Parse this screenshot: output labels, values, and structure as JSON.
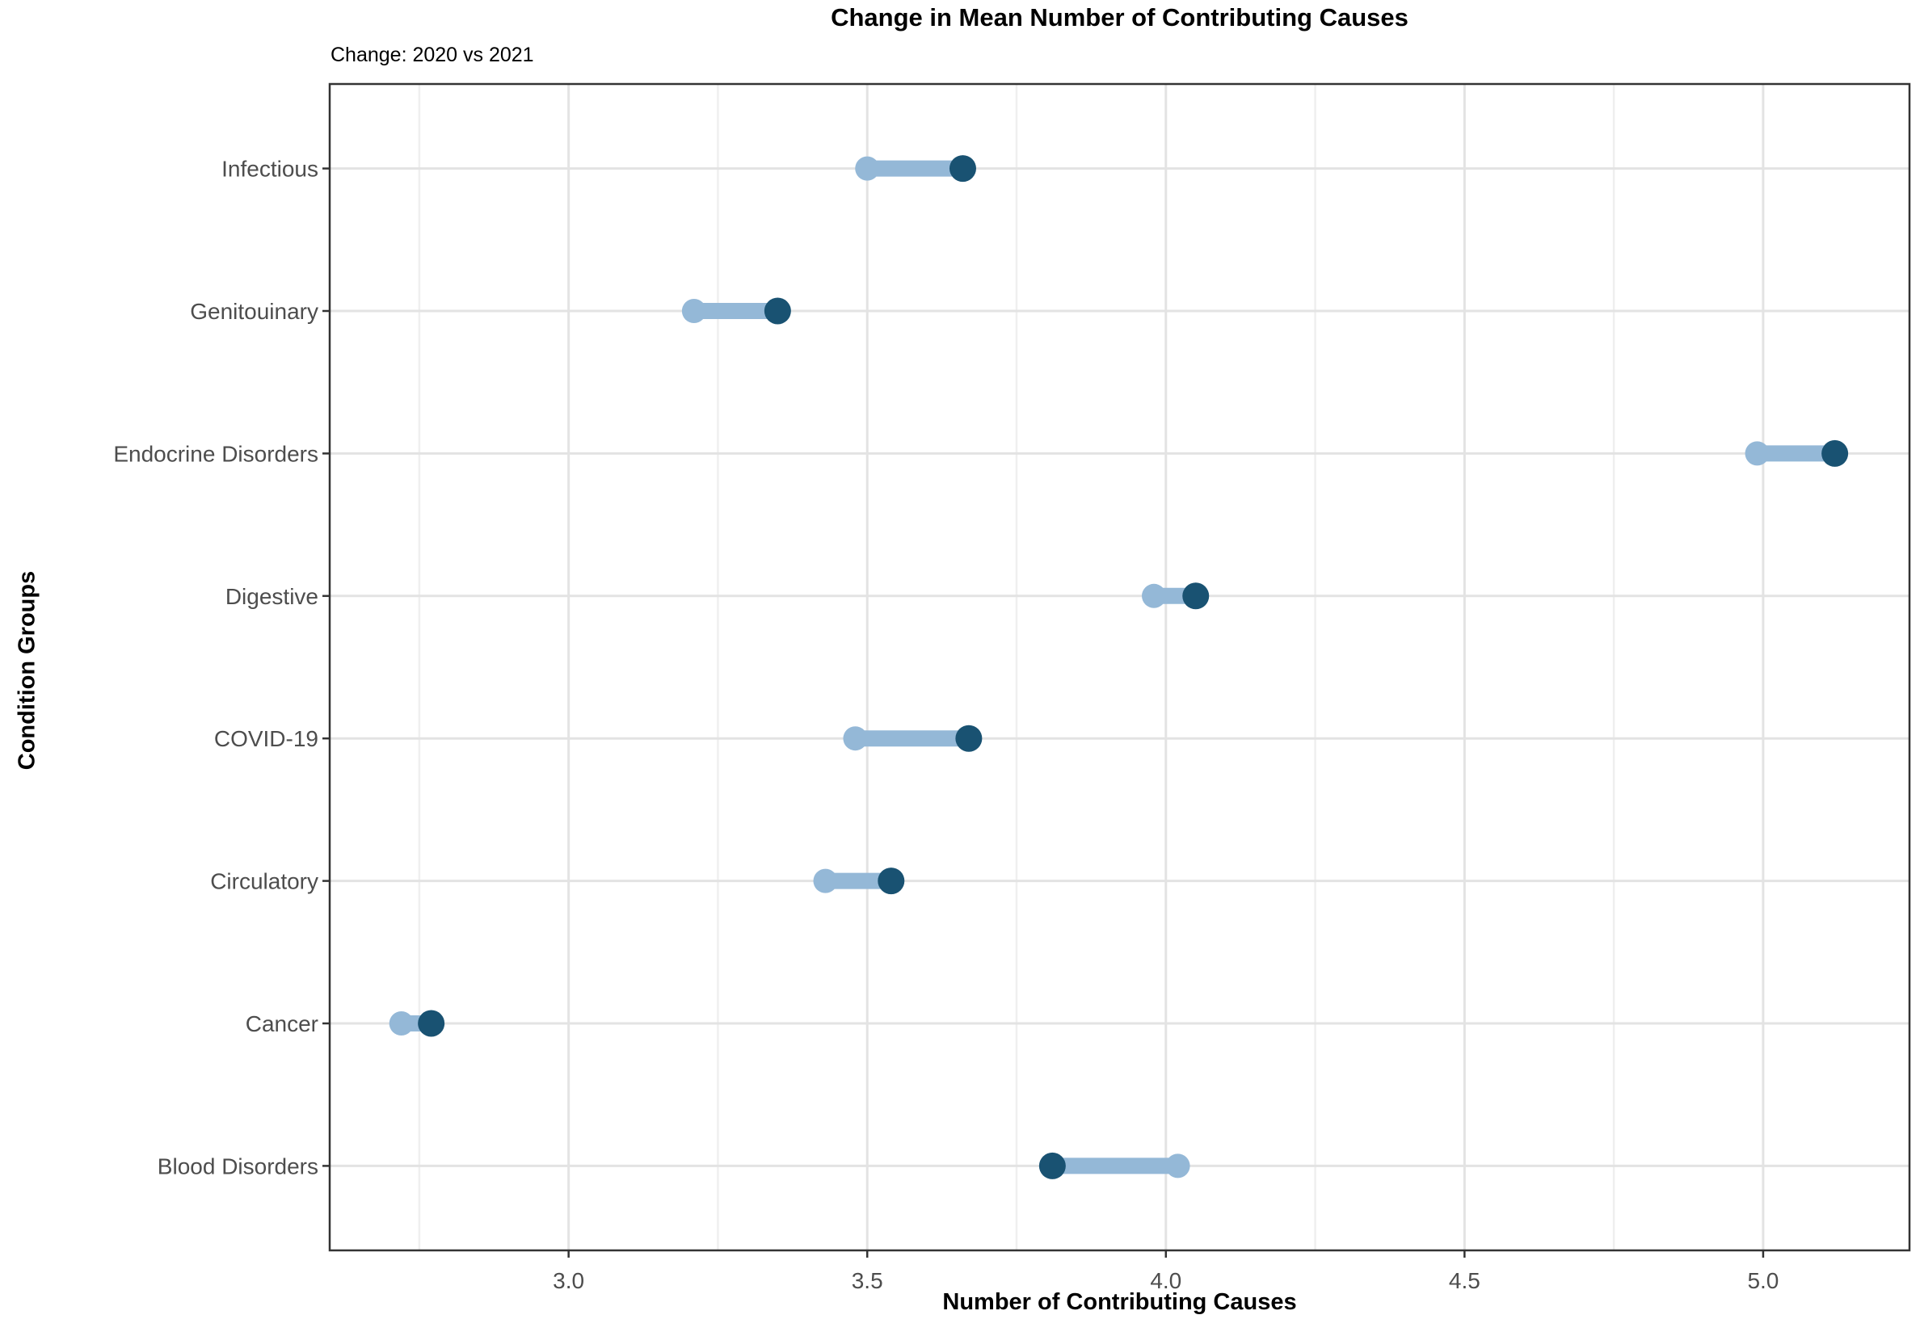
{
  "chart_data": {
    "type": "dumbbell",
    "title": "Change in Mean Number of Contributing Causes",
    "subtitle": "Change: 2020 vs 2021",
    "xlabel": "Number of Contributing Causes",
    "ylabel": "Condition Groups",
    "categories": [
      "Infectious",
      "Genitouinary",
      "Endocrine Disorders",
      "Digestive",
      "COVID-19",
      "Circulatory",
      "Cancer",
      "Blood Disorders"
    ],
    "series": [
      {
        "name": "2020",
        "color": "#94b8d7",
        "values": [
          3.5,
          3.21,
          4.99,
          3.98,
          3.48,
          3.43,
          2.72,
          4.02
        ]
      },
      {
        "name": "2021",
        "color": "#195272",
        "values": [
          3.66,
          3.35,
          5.12,
          4.05,
          3.67,
          3.54,
          2.77,
          3.81
        ]
      }
    ],
    "x_ticks": [
      3.0,
      3.5,
      4.0,
      4.5,
      5.0
    ],
    "x_tick_labels": [
      "3.0",
      "3.5",
      "4.0",
      "4.5",
      "5.0"
    ],
    "x_minor_ticks": [
      2.75,
      3.25,
      3.75,
      4.25,
      4.75
    ],
    "xlim": [
      2.6,
      5.245
    ],
    "grid": true,
    "legend_position": "none",
    "colors": {
      "series_2020": "#94b8d7",
      "series_2021": "#195272",
      "grid_major": "#e3e3e3",
      "grid_minor": "#efefef",
      "panel_border": "#333333",
      "tick_label_text": "#4d4d4d",
      "background": "#ffffff"
    }
  }
}
